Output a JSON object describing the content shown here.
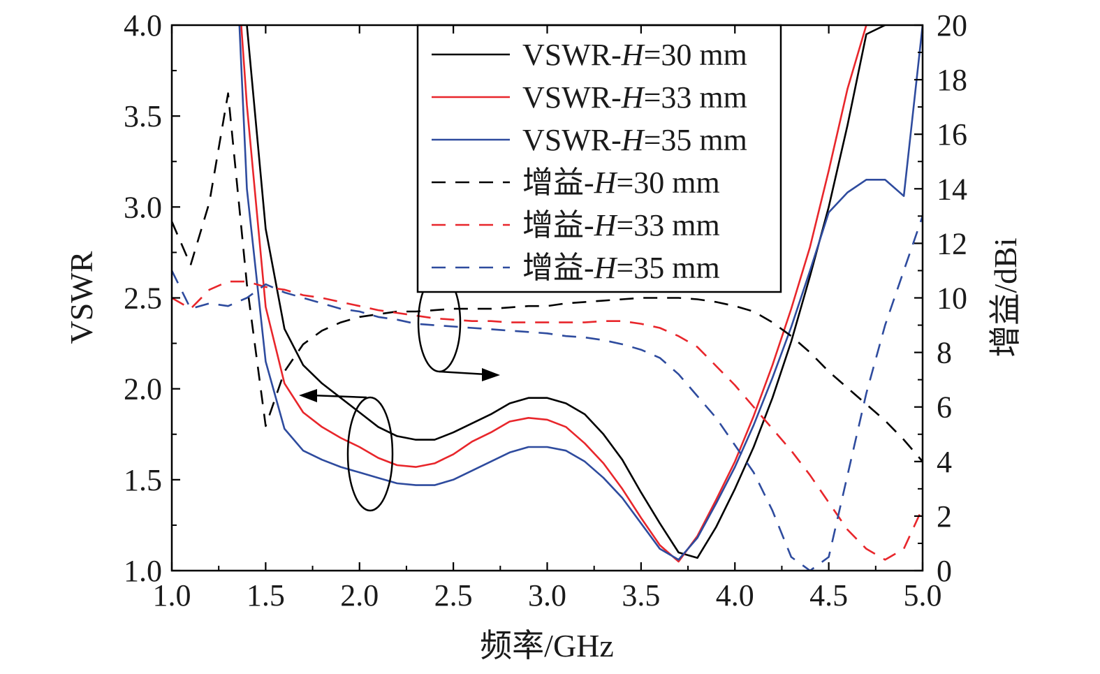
{
  "chart_data": {
    "type": "line",
    "xlabel": "频率/GHz",
    "ylabel_left": "VSWR",
    "ylabel_right": "增益/dBi",
    "xlim": [
      1.0,
      5.0
    ],
    "ylim_left": [
      1.0,
      4.0
    ],
    "ylim_right": [
      0,
      20
    ],
    "x_ticks": [
      "1.0",
      "1.5",
      "2.0",
      "2.5",
      "3.0",
      "3.5",
      "4.0",
      "4.5",
      "5.0"
    ],
    "y_left_ticks": [
      "1.0",
      "1.5",
      "2.0",
      "2.5",
      "3.0",
      "3.5",
      "4.0"
    ],
    "y_right_ticks": [
      "0",
      "2",
      "4",
      "6",
      "8",
      "10",
      "12",
      "14",
      "16",
      "18",
      "20"
    ],
    "grid": false,
    "legend_position": "top-center",
    "series": [
      {
        "name": "VSWR-H=30 mm",
        "param": "30 mm",
        "kind": "VSWR",
        "axis": "left",
        "color": "#000000",
        "style": "solid",
        "x": [
          1.4,
          1.5,
          1.6,
          1.7,
          1.8,
          1.9,
          2.0,
          2.1,
          2.2,
          2.3,
          2.4,
          2.5,
          2.6,
          2.7,
          2.8,
          2.9,
          3.0,
          3.1,
          3.2,
          3.3,
          3.4,
          3.5,
          3.6,
          3.7,
          3.8,
          3.9,
          4.0,
          4.1,
          4.2,
          4.3,
          4.4,
          4.5,
          4.6,
          4.7,
          4.8
        ],
        "y": [
          4.0,
          2.88,
          2.33,
          2.13,
          2.03,
          1.95,
          1.87,
          1.79,
          1.74,
          1.72,
          1.72,
          1.76,
          1.81,
          1.86,
          1.92,
          1.95,
          1.95,
          1.92,
          1.86,
          1.75,
          1.61,
          1.43,
          1.26,
          1.1,
          1.07,
          1.24,
          1.45,
          1.68,
          1.95,
          2.26,
          2.62,
          3.0,
          3.45,
          3.95,
          4.0
        ]
      },
      {
        "name": "VSWR-H=33 mm",
        "param": "33 mm",
        "kind": "VSWR",
        "axis": "left",
        "color": "#e8262b",
        "style": "solid",
        "x": [
          1.37,
          1.4,
          1.5,
          1.6,
          1.7,
          1.8,
          1.9,
          2.0,
          2.1,
          2.2,
          2.3,
          2.4,
          2.5,
          2.6,
          2.7,
          2.8,
          2.9,
          3.0,
          3.1,
          3.2,
          3.3,
          3.4,
          3.5,
          3.6,
          3.7,
          3.8,
          3.9,
          4.0,
          4.1,
          4.2,
          4.3,
          4.4,
          4.5,
          4.6,
          4.7
        ],
        "y": [
          4.0,
          3.56,
          2.45,
          2.03,
          1.87,
          1.79,
          1.73,
          1.68,
          1.62,
          1.58,
          1.57,
          1.59,
          1.64,
          1.71,
          1.76,
          1.82,
          1.84,
          1.83,
          1.79,
          1.7,
          1.59,
          1.45,
          1.29,
          1.14,
          1.05,
          1.19,
          1.39,
          1.6,
          1.85,
          2.13,
          2.44,
          2.78,
          3.2,
          3.65,
          4.0
        ]
      },
      {
        "name": "VSWR-H=35 mm",
        "param": "35 mm",
        "kind": "VSWR",
        "axis": "left",
        "color": "#2e4b9e",
        "style": "solid",
        "x": [
          1.36,
          1.4,
          1.5,
          1.6,
          1.7,
          1.8,
          1.9,
          2.0,
          2.1,
          2.2,
          2.3,
          2.4,
          2.5,
          2.6,
          2.7,
          2.8,
          2.9,
          3.0,
          3.1,
          3.2,
          3.3,
          3.4,
          3.5,
          3.6,
          3.7,
          3.8,
          3.9,
          4.0,
          4.1,
          4.2,
          4.3,
          4.4,
          4.5,
          4.6,
          4.7,
          4.8,
          4.9,
          5.0
        ],
        "y": [
          4.0,
          3.1,
          2.15,
          1.78,
          1.66,
          1.61,
          1.57,
          1.54,
          1.51,
          1.48,
          1.47,
          1.47,
          1.5,
          1.55,
          1.6,
          1.65,
          1.68,
          1.68,
          1.66,
          1.6,
          1.51,
          1.4,
          1.26,
          1.12,
          1.06,
          1.18,
          1.37,
          1.57,
          1.8,
          2.06,
          2.34,
          2.65,
          2.97,
          3.08,
          3.15,
          3.15,
          3.06,
          4.0
        ]
      },
      {
        "name": "增益-H=30 mm",
        "param": "30 mm",
        "kind": "增益",
        "axis": "right",
        "color": "#000000",
        "style": "dashed",
        "x": [
          1.0,
          1.1,
          1.2,
          1.3,
          1.4,
          1.5,
          1.6,
          1.7,
          1.8,
          1.9,
          2.0,
          2.1,
          2.2,
          2.3,
          2.4,
          2.5,
          2.6,
          2.7,
          2.8,
          2.9,
          3.0,
          3.1,
          3.2,
          3.3,
          3.4,
          3.5,
          3.6,
          3.7,
          3.8,
          3.9,
          4.0,
          4.1,
          4.2,
          4.3,
          4.4,
          4.5,
          4.6,
          4.7,
          4.8,
          4.9,
          5.0
        ],
        "y": [
          12.8,
          11.2,
          13.5,
          17.5,
          10.5,
          5.3,
          7.3,
          8.3,
          8.8,
          9.1,
          9.3,
          9.4,
          9.5,
          9.5,
          9.55,
          9.6,
          9.6,
          9.6,
          9.65,
          9.7,
          9.7,
          9.8,
          9.85,
          9.9,
          9.95,
          10.0,
          10.0,
          10.0,
          9.95,
          9.85,
          9.7,
          9.5,
          9.1,
          8.6,
          8.0,
          7.3,
          6.7,
          6.1,
          5.5,
          4.8,
          4.0
        ]
      },
      {
        "name": "增益-H=33 mm",
        "param": "33 mm",
        "kind": "增益",
        "axis": "right",
        "color": "#e8262b",
        "style": "dashed",
        "x": [
          1.0,
          1.1,
          1.2,
          1.3,
          1.4,
          1.5,
          1.6,
          1.7,
          1.8,
          1.9,
          2.0,
          2.1,
          2.2,
          2.3,
          2.4,
          2.5,
          2.6,
          2.7,
          2.8,
          2.9,
          3.0,
          3.1,
          3.2,
          3.3,
          3.4,
          3.5,
          3.6,
          3.7,
          3.8,
          3.9,
          4.0,
          4.1,
          4.2,
          4.3,
          4.4,
          4.5,
          4.6,
          4.7,
          4.8,
          4.9,
          5.0
        ],
        "y": [
          10.0,
          9.6,
          10.3,
          10.6,
          10.6,
          10.4,
          10.3,
          10.1,
          10.0,
          9.85,
          9.7,
          9.55,
          9.45,
          9.35,
          9.25,
          9.2,
          9.15,
          9.15,
          9.1,
          9.1,
          9.1,
          9.1,
          9.1,
          9.15,
          9.15,
          9.05,
          8.9,
          8.6,
          8.2,
          7.5,
          6.8,
          6.0,
          5.2,
          4.4,
          3.5,
          2.5,
          1.5,
          0.8,
          0.4,
          0.8,
          2.3
        ]
      },
      {
        "name": "增益-H=35 mm",
        "param": "35 mm",
        "kind": "增益",
        "axis": "right",
        "color": "#2e4b9e",
        "style": "dashed",
        "x": [
          1.0,
          1.1,
          1.2,
          1.3,
          1.4,
          1.5,
          1.6,
          1.7,
          1.8,
          1.9,
          2.0,
          2.1,
          2.2,
          2.3,
          2.4,
          2.5,
          2.6,
          2.7,
          2.8,
          2.9,
          3.0,
          3.1,
          3.2,
          3.3,
          3.4,
          3.5,
          3.6,
          3.7,
          3.8,
          3.9,
          4.0,
          4.1,
          4.2,
          4.3,
          4.4,
          4.5,
          4.6,
          4.7,
          4.8,
          4.9,
          5.0
        ],
        "y": [
          11.0,
          9.6,
          9.8,
          9.7,
          10.0,
          10.5,
          10.2,
          10.0,
          9.8,
          9.6,
          9.5,
          9.3,
          9.2,
          9.05,
          9.0,
          8.95,
          8.9,
          8.85,
          8.8,
          8.75,
          8.7,
          8.6,
          8.55,
          8.45,
          8.3,
          8.1,
          7.8,
          7.2,
          6.4,
          5.6,
          4.6,
          3.6,
          2.2,
          0.5,
          0.0,
          0.5,
          3.5,
          6.5,
          9.0,
          11.0,
          13.0
        ]
      }
    ],
    "annotations": [
      {
        "kind": "ellipse-arrow",
        "target_axis": "left",
        "arrow_direction": "left"
      },
      {
        "kind": "ellipse-arrow",
        "target_axis": "right",
        "arrow_direction": "right"
      }
    ]
  }
}
